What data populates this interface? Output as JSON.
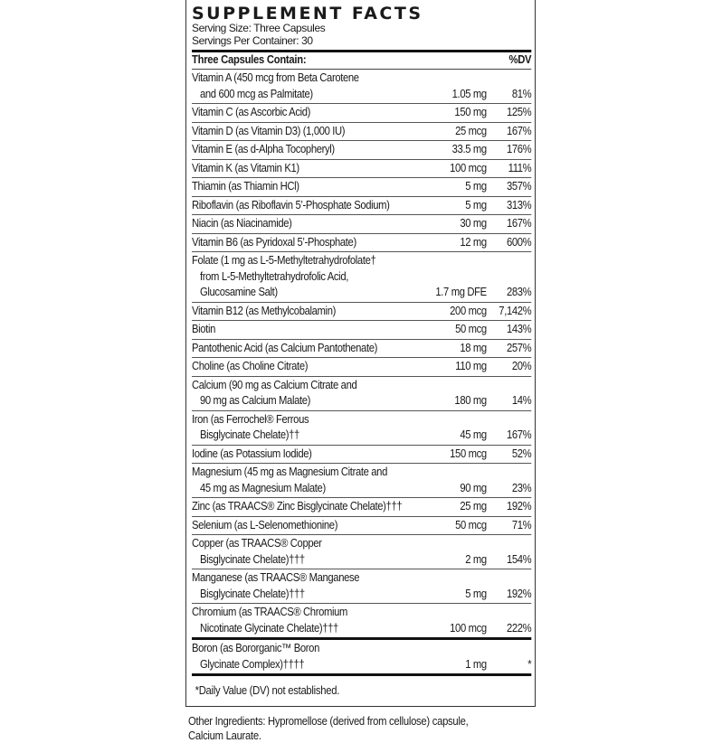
{
  "title": "SUPPLEMENT FACTS",
  "serving_size": "Serving Size: Three Capsules",
  "servings_per_container": "Servings Per Container: 30",
  "header": {
    "left": "Three Capsules Contain:",
    "right": "%DV"
  },
  "rows": [
    {
      "lines": [
        "Vitamin A (450 mcg from Beta Carotene",
        "and 600 mcg as Palmitate)"
      ],
      "amount": "1.05 mg",
      "dv": "81%"
    },
    {
      "lines": [
        "Vitamin C (as Ascorbic Acid)"
      ],
      "amount": "150 mg",
      "dv": "125%"
    },
    {
      "lines": [
        "Vitamin D (as Vitamin D3) (1,000 IU)"
      ],
      "amount": "25 mcg",
      "dv": "167%"
    },
    {
      "lines": [
        "Vitamin E (as d-Alpha Tocopheryl)"
      ],
      "amount": "33.5 mg",
      "dv": "176%"
    },
    {
      "lines": [
        "Vitamin K (as Vitamin K1)"
      ],
      "amount": "100 mcg",
      "dv": "111%"
    },
    {
      "lines": [
        "Thiamin (as Thiamin HCl)"
      ],
      "amount": "5 mg",
      "dv": "357%"
    },
    {
      "lines": [
        "Riboflavin (as Riboflavin 5’-Phosphate Sodium)"
      ],
      "amount": "5 mg",
      "dv": "313%"
    },
    {
      "lines": [
        "Niacin (as Niacinamide)"
      ],
      "amount": "30 mg",
      "dv": "167%"
    },
    {
      "lines": [
        "Vitamin B6 (as Pyridoxal 5’-Phosphate)"
      ],
      "amount": "12 mg",
      "dv": "600%"
    },
    {
      "lines": [
        "Folate (1 mg as L-5-Methyltetrahydrofolate†",
        "from L-5-Methyltetrahydrofolic Acid,",
        "Glucosamine Salt)"
      ],
      "amount": "1.7 mg DFE",
      "dv": "283%"
    },
    {
      "lines": [
        "Vitamin B12 (as Methylcobalamin)"
      ],
      "amount": "200 mcg",
      "dv": "7,142%"
    },
    {
      "lines": [
        "Biotin"
      ],
      "amount": "50 mcg",
      "dv": "143%"
    },
    {
      "lines": [
        "Pantothenic Acid (as Calcium Pantothenate)"
      ],
      "amount": "18 mg",
      "dv": "257%"
    },
    {
      "lines": [
        "Choline (as Choline Citrate)"
      ],
      "amount": "110 mg",
      "dv": "20%"
    },
    {
      "lines": [
        "Calcium (90 mg as Calcium Citrate and",
        "90 mg as Calcium Malate)"
      ],
      "amount": "180 mg",
      "dv": "14%"
    },
    {
      "lines": [
        "Iron (as Ferrochel® Ferrous",
        "Bisglycinate Chelate)††"
      ],
      "amount": "45 mg",
      "dv": "167%"
    },
    {
      "lines": [
        "Iodine (as Potassium Iodide)"
      ],
      "amount": "150 mcg",
      "dv": "52%"
    },
    {
      "lines": [
        "Magnesium (45 mg as Magnesium Citrate and",
        "45 mg as Magnesium Malate)"
      ],
      "amount": "90 mg",
      "dv": "23%"
    },
    {
      "lines": [
        "Zinc (as TRAACS® Zinc Bisglycinate Chelate)†††"
      ],
      "amount": "25 mg",
      "dv": "192%"
    },
    {
      "lines": [
        "Selenium (as L-Selenomethionine)"
      ],
      "amount": "50 mcg",
      "dv": "71%"
    },
    {
      "lines": [
        "Copper (as TRAACS® Copper",
        "Bisglycinate Chelate)†††"
      ],
      "amount": "2 mg",
      "dv": "154%"
    },
    {
      "lines": [
        "Manganese (as TRAACS® Manganese",
        "Bisglycinate Chelate)†††"
      ],
      "amount": "5 mg",
      "dv": "192%"
    },
    {
      "lines": [
        "Chromium (as TRAACS® Chromium",
        "Nicotinate Glycinate Chelate)†††"
      ],
      "amount": "100 mcg",
      "dv": "222%"
    },
    {
      "lines": [
        "Boron (as Bororganic™ Boron",
        "Glycinate Complex)††††"
      ],
      "amount": "1 mg",
      "dv": "*"
    }
  ],
  "footnote": "*Daily Value (DV) not established.",
  "other_ingredients": [
    "Other Ingredients: Hypromellose (derived from cellulose) capsule,",
    "Calcium Laurate."
  ]
}
